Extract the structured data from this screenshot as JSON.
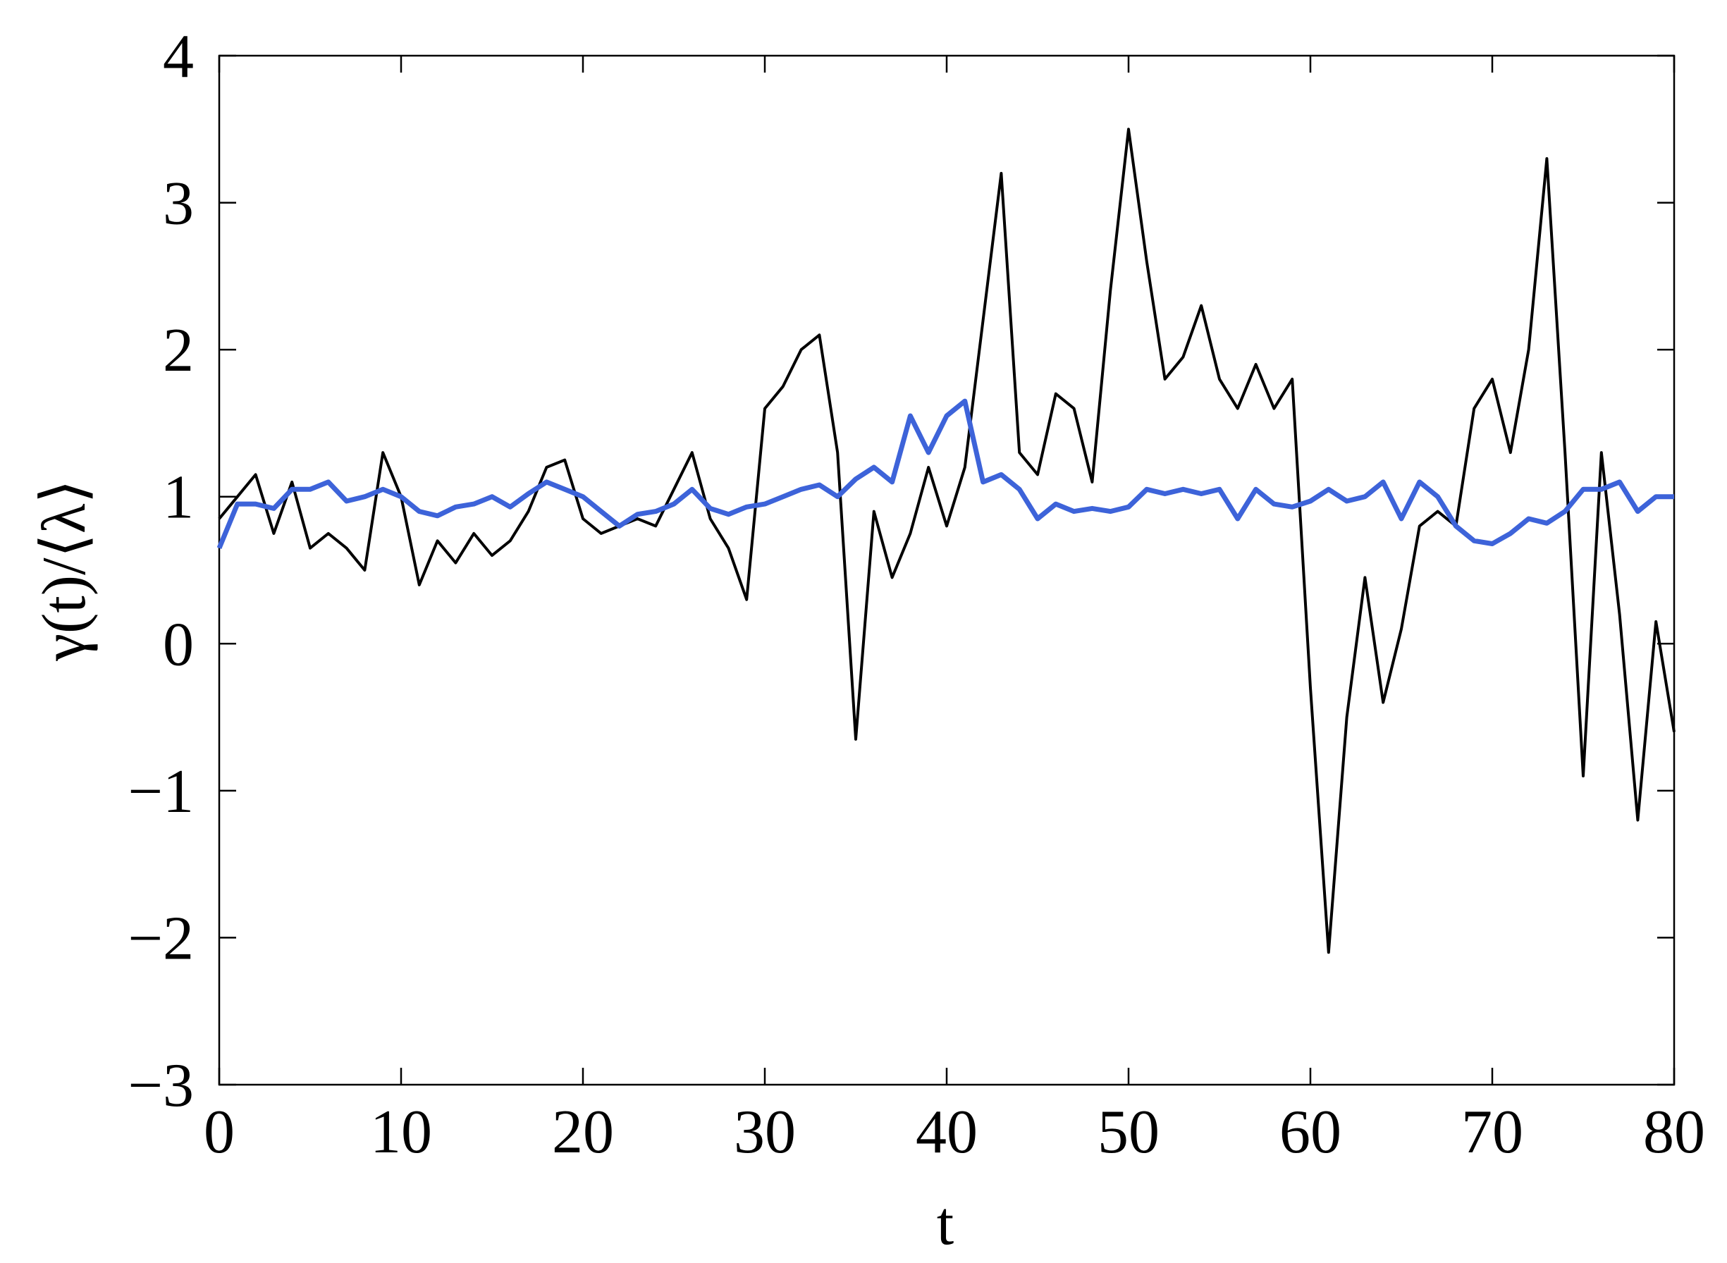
{
  "chart_data": {
    "type": "line",
    "xlabel": "t",
    "ylabel": "γ(t)/⟨λ⟩",
    "x": [
      0,
      1,
      2,
      3,
      4,
      5,
      6,
      7,
      8,
      9,
      10,
      11,
      12,
      13,
      14,
      15,
      16,
      17,
      18,
      19,
      20,
      21,
      22,
      23,
      24,
      25,
      26,
      27,
      28,
      29,
      30,
      31,
      32,
      33,
      34,
      35,
      36,
      37,
      38,
      39,
      40,
      41,
      42,
      43,
      44,
      45,
      46,
      47,
      48,
      49,
      50,
      51,
      52,
      53,
      54,
      55,
      56,
      57,
      58,
      59,
      60,
      61,
      62,
      63,
      64,
      65,
      66,
      67,
      68,
      69,
      70,
      71,
      72,
      73,
      74,
      75,
      76,
      77,
      78,
      79,
      80
    ],
    "series": [
      {
        "color": "#000000",
        "values": [
          0.85,
          1.0,
          1.15,
          0.75,
          1.1,
          0.65,
          0.75,
          0.65,
          0.5,
          1.3,
          1.0,
          0.4,
          0.7,
          0.55,
          0.75,
          0.6,
          0.7,
          0.9,
          1.2,
          1.25,
          0.85,
          0.75,
          0.8,
          0.85,
          0.8,
          1.05,
          1.3,
          0.85,
          0.65,
          0.3,
          1.6,
          1.75,
          2.0,
          2.1,
          1.3,
          -0.65,
          0.9,
          0.45,
          0.75,
          1.2,
          0.8,
          1.2,
          2.2,
          3.2,
          1.3,
          1.15,
          1.7,
          1.6,
          1.1,
          2.4,
          3.5,
          2.6,
          1.8,
          1.95,
          2.3,
          1.8,
          1.6,
          1.9,
          1.6,
          1.8,
          -0.3,
          -2.1,
          -0.5,
          0.45,
          -0.4,
          0.1,
          0.8,
          0.9,
          0.8,
          1.6,
          1.8,
          1.3,
          2.0,
          3.3,
          1.3,
          -0.9,
          1.3,
          0.2,
          -1.2,
          0.15,
          -0.6
        ]
      },
      {
        "color": "#3d63d9",
        "values": [
          0.65,
          0.95,
          0.95,
          0.92,
          1.05,
          1.05,
          1.1,
          0.97,
          1.0,
          1.05,
          1.0,
          0.9,
          0.87,
          0.93,
          0.95,
          1.0,
          0.93,
          1.02,
          1.1,
          1.05,
          1.0,
          0.9,
          0.8,
          0.88,
          0.9,
          0.95,
          1.05,
          0.92,
          0.88,
          0.93,
          0.95,
          1.0,
          1.05,
          1.08,
          1.0,
          1.12,
          1.2,
          1.1,
          1.55,
          1.3,
          1.55,
          1.65,
          1.1,
          1.15,
          1.05,
          0.85,
          0.95,
          0.9,
          0.92,
          0.9,
          0.93,
          1.05,
          1.02,
          1.05,
          1.02,
          1.05,
          0.85,
          1.05,
          0.95,
          0.93,
          0.97,
          1.05,
          0.97,
          1.0,
          1.1,
          0.85,
          1.1,
          1.0,
          0.8,
          0.7,
          0.68,
          0.75,
          0.85,
          0.82,
          0.9,
          1.05,
          1.05,
          1.1,
          0.9,
          1.0,
          1.0
        ]
      }
    ],
    "xlim": [
      0,
      80
    ],
    "xticks": [
      0,
      10,
      20,
      30,
      40,
      50,
      60,
      70,
      80
    ],
    "ylim": [
      -3,
      4
    ],
    "yticks": [
      {
        "value": -3,
        "label": "−3"
      },
      {
        "value": -2,
        "label": "−2"
      },
      {
        "value": -1,
        "label": "−1"
      },
      0,
      1,
      2,
      3,
      4
    ],
    "grid": false
  }
}
